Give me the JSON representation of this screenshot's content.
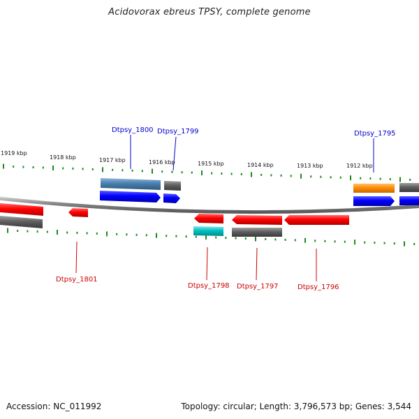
{
  "title": "Acidovorax ebreus TPSY, complete genome",
  "footer": {
    "accession": "Accession: NC_011992",
    "summary": "Topology: circular; Length: 3,796,573 bp; Genes: 3,544"
  },
  "colors": {
    "forward_label": "#0000cc",
    "reverse_label": "#cc0000",
    "tick": "#1a8a1a",
    "backbone": "#8a8a8a",
    "red": "#ff0000",
    "blue": "#0000ff",
    "steelblue": "#4a7fb0",
    "gray": "#606060",
    "orange": "#ff8c00",
    "cyan": "#00c0c0"
  },
  "ticks": [
    {
      "label": "1919 kbp"
    },
    {
      "label": "1918 kbp"
    },
    {
      "label": "1917 kbp"
    },
    {
      "label": "1916 kbp"
    },
    {
      "label": "1915 kbp"
    },
    {
      "label": "1914 kbp"
    },
    {
      "label": "1913 kbp"
    },
    {
      "label": "1912 kbp"
    }
  ],
  "gene_labels": [
    {
      "id": "Dtpsy_1800",
      "strand": "forward"
    },
    {
      "id": "Dtpsy_1799",
      "strand": "forward"
    },
    {
      "id": "Dtpsy_1795",
      "strand": "forward"
    },
    {
      "id": "Dtpsy_1801",
      "strand": "reverse"
    },
    {
      "id": "Dtpsy_1798",
      "strand": "reverse"
    },
    {
      "id": "Dtpsy_1797",
      "strand": "reverse"
    },
    {
      "id": "Dtpsy_1796",
      "strand": "reverse"
    }
  ]
}
